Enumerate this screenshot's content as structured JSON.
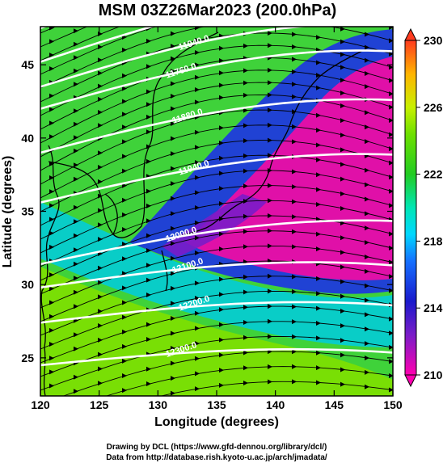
{
  "title": "MSM 03Z26Mar2023 (200.0hPa)",
  "xaxis": {
    "label": "Longitude (degrees)",
    "ticks": [
      120,
      125,
      130,
      135,
      140,
      145,
      150
    ],
    "range": [
      120,
      150
    ]
  },
  "yaxis": {
    "label": "Latitude  (degrees)",
    "ticks": [
      25,
      30,
      35,
      40,
      45
    ],
    "range": [
      22.4,
      47.6
    ]
  },
  "colorbar": {
    "ticks": [
      210,
      214,
      218,
      222,
      226,
      230
    ],
    "range": [
      210,
      230
    ]
  },
  "contours": [
    {
      "label": "11880.0",
      "lat_at_120": 47.5
    },
    {
      "label": "11940.0",
      "lat_at_120": 45.2
    },
    {
      "label": "11940.0",
      "lat_at_120": 43.5
    },
    {
      "label": "11760.0",
      "lat_at_120": 42.0
    },
    {
      "label": "11880.0",
      "lat_at_120": 39.0
    },
    {
      "label": "11940.0",
      "lat_at_120": 35.6
    },
    {
      "label": "12000.0",
      "lat_at_120": 31.4
    },
    {
      "label": "12100.0",
      "lat_at_120": 29.8
    },
    {
      "label": "12200.0",
      "lat_at_120": 27.4
    },
    {
      "label": "12300.0",
      "lat_at_120": 24.5
    }
  ],
  "footer": {
    "line1": "Drawing by DCL (https://www.gfd-dennou.org/library/dcl/)",
    "line2": "Data from http://database.rish.kyoto-u.ac.jp/arch/jmadata/"
  },
  "colors": {
    "max": "#ff3b1f",
    "high": "#c8f000",
    "mid": "#22cc22",
    "cyan": "#00d7ff",
    "low": "#1a1acc",
    "min": "#ff00b0"
  }
}
